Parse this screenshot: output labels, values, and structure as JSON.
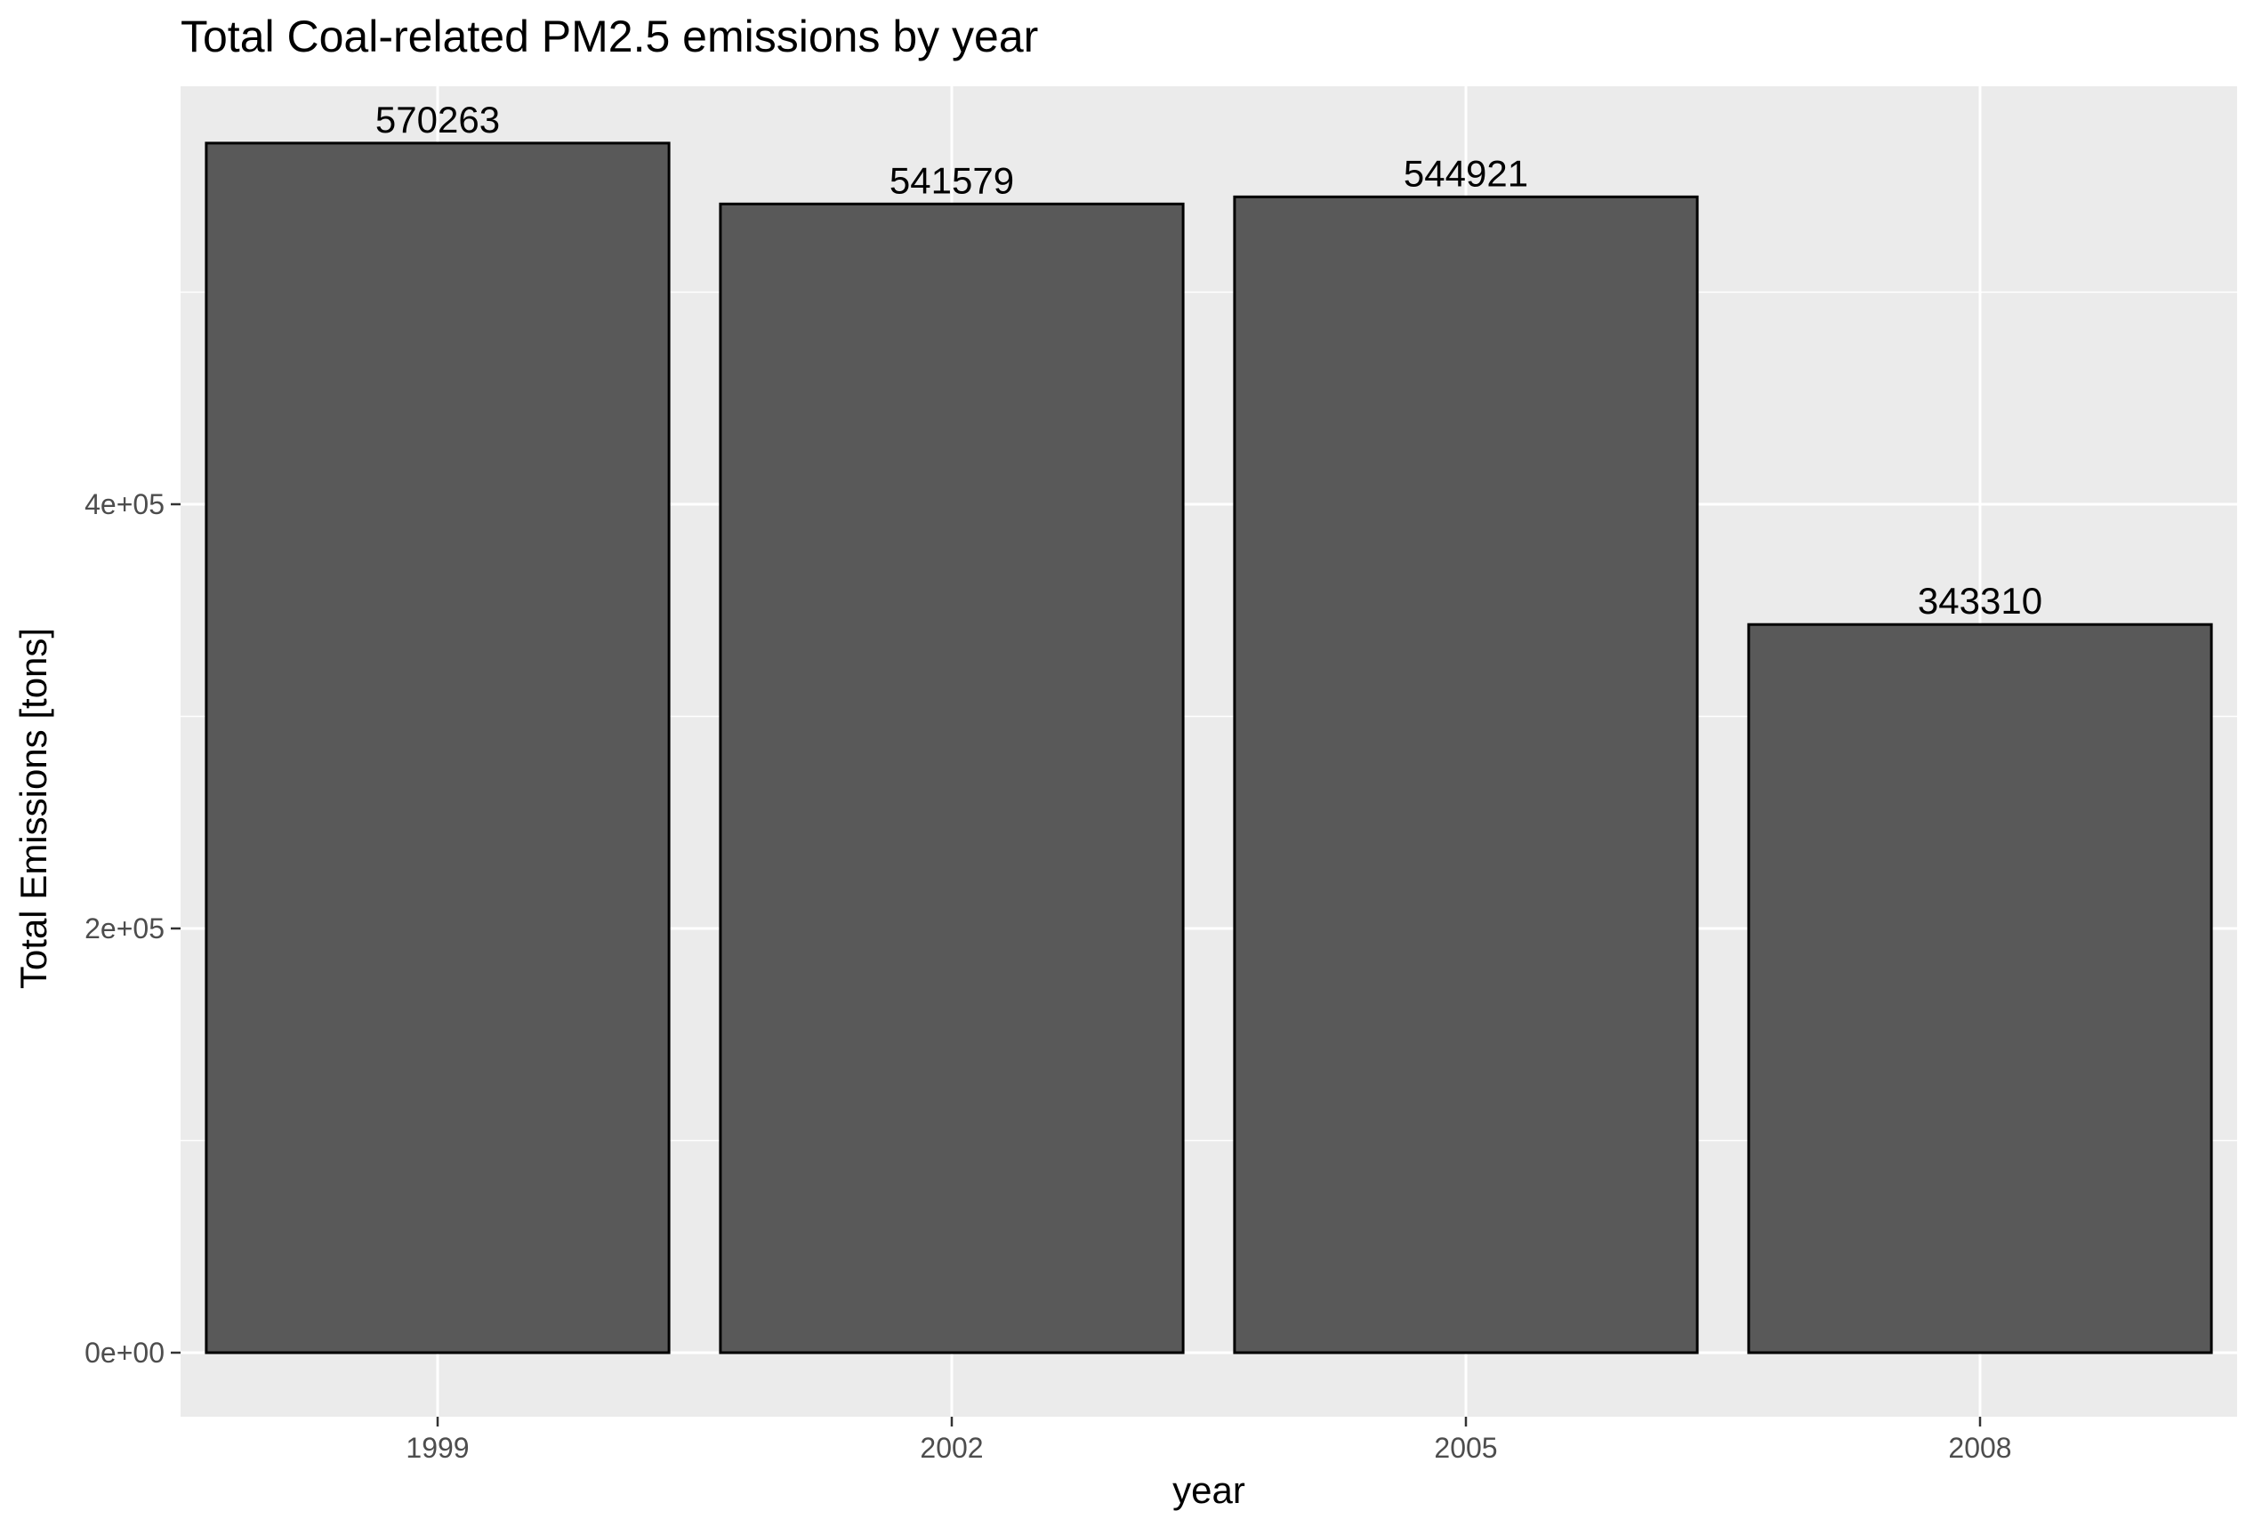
{
  "chart_data": {
    "type": "bar",
    "title": "Total Coal-related PM2.5 emissions by year",
    "xlabel": "year",
    "ylabel": "Total Emissions [tons]",
    "categories": [
      "1999",
      "2002",
      "2005",
      "2008"
    ],
    "values": [
      570263,
      541579,
      544921,
      343310
    ],
    "data_labels": [
      "570263",
      "541579",
      "544921",
      "343310"
    ],
    "ylim": [
      -28513,
      598776
    ],
    "y_ticks": [
      0,
      200000,
      400000
    ],
    "y_tick_labels": [
      "0e+00",
      "2e+05",
      "4e+05"
    ],
    "y_minor_gridlines": [
      100000,
      300000,
      500000
    ],
    "grid": true,
    "legend": "none",
    "colors": {
      "panel_background": "#EBEBEB",
      "grid": "#FFFFFF",
      "bar_fill": "#595959",
      "bar_outline": "#000000",
      "tick_label": "#4D4D4D",
      "tick_mark": "#333333",
      "text": "#000000"
    }
  }
}
